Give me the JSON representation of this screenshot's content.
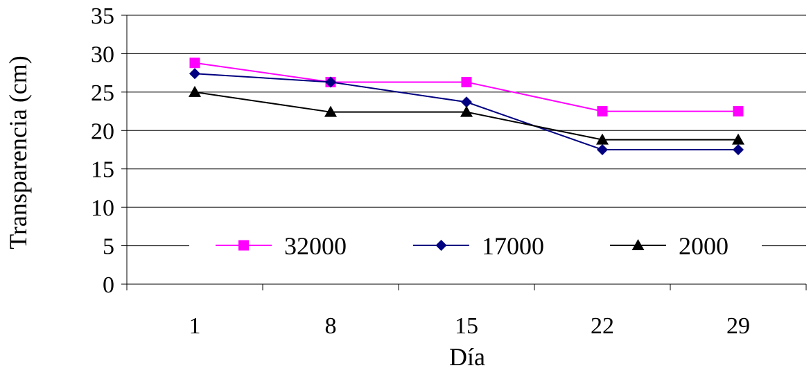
{
  "chart_data": {
    "type": "line",
    "categories": [
      "1",
      "8",
      "15",
      "22",
      "29"
    ],
    "xlabel": "Día",
    "ylabel": "Transparencia (cm)",
    "ylim": [
      0,
      35
    ],
    "yticks": [
      "0",
      "5",
      "10",
      "15",
      "20",
      "25",
      "30",
      "35"
    ],
    "grid": "horizontal",
    "legend_placement": "bottom-center",
    "series": [
      {
        "name": "32000",
        "values": [
          28.8,
          26.3,
          26.3,
          22.5,
          22.5
        ],
        "color": "#ff00ff",
        "marker": "square"
      },
      {
        "name": "17000",
        "values": [
          27.4,
          26.3,
          23.7,
          17.5,
          17.5
        ],
        "color": "#000080",
        "marker": "diamond"
      },
      {
        "name": "2000",
        "values": [
          25.0,
          22.4,
          22.4,
          18.8,
          18.8
        ],
        "color": "#000000",
        "marker": "triangle"
      }
    ]
  }
}
